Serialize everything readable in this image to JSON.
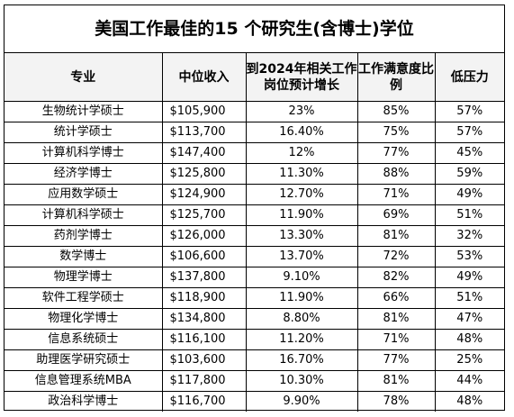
{
  "title": "美国工作最佳的15 个研究生(含博士)学位",
  "columns": [
    "专业",
    "中位收入",
    "到2024年相关工作岗位预计增长",
    "工作满意度比例",
    "低压力"
  ],
  "rows": [
    [
      "生物统计学硕士",
      "$105,900",
      "23%",
      "85%",
      "57%"
    ],
    [
      "统计学硕士",
      "$113,700",
      "16.40%",
      "75%",
      "57%"
    ],
    [
      "计算机科学博士",
      "$147,400",
      "12%",
      "77%",
      "45%"
    ],
    [
      "经济学博士",
      "$125,800",
      "11.30%",
      "88%",
      "59%"
    ],
    [
      "应用数学硕士",
      "$124,900",
      "12.70%",
      "71%",
      "49%"
    ],
    [
      "计算机科学硕士",
      "$125,700",
      "11.90%",
      "69%",
      "51%"
    ],
    [
      "药剂学博士",
      "$126,000",
      "13.30%",
      "81%",
      "32%"
    ],
    [
      "数学博士",
      "$106,600",
      "13.70%",
      "72%",
      "53%"
    ],
    [
      "物理学博士",
      "$137,800",
      "9.10%",
      "82%",
      "49%"
    ],
    [
      "软件工程学硕士",
      "$118,900",
      "11.90%",
      "66%",
      "51%"
    ],
    [
      "物理化学博士",
      "$134,800",
      "8.80%",
      "81%",
      "47%"
    ],
    [
      "信息系统硕士",
      "$116,100",
      "11.20%",
      "71%",
      "48%"
    ],
    [
      "助理医学研究硕士",
      "$103,600",
      "16.70%",
      "77%",
      "25%"
    ],
    [
      "信息管理系统MBA",
      "$117,800",
      "10.30%",
      "81%",
      "44%"
    ],
    [
      "政治科学博士",
      "$116,700",
      "9.90%",
      "78%",
      "48%"
    ]
  ]
}
